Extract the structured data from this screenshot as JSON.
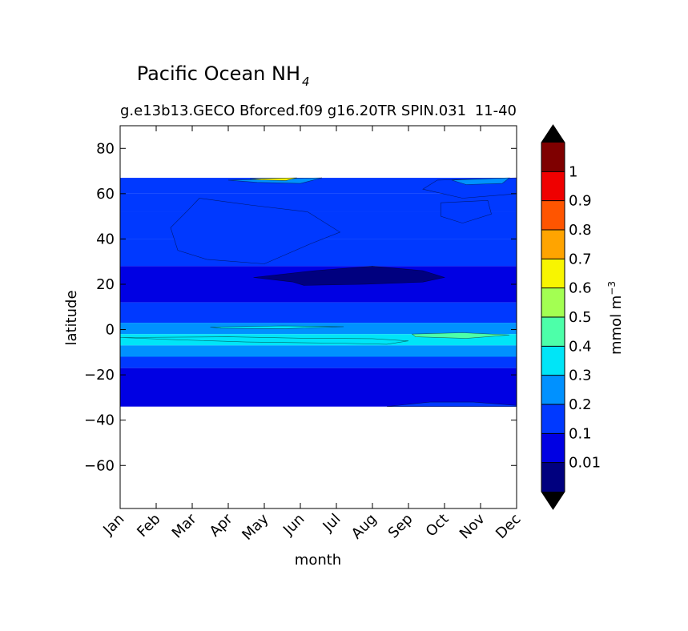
{
  "chart_data": {
    "type": "heatmap",
    "title": "Pacific Ocean NH",
    "title_subscript": "4",
    "subtitle": "g.e13b13.GECO Bforced.f09 g16.20TR SPIN.031",
    "subtitle_right": "11-40",
    "xlabel": "month",
    "ylabel": "latitude",
    "x_categories": [
      "Jan",
      "Feb",
      "Mar",
      "Apr",
      "May",
      "Jun",
      "Jul",
      "Aug",
      "Sep",
      "Oct",
      "Nov",
      "Dec"
    ],
    "y_ticks": [
      80,
      60,
      40,
      20,
      0,
      -20,
      -40,
      -60
    ],
    "y_tick_labels": [
      "80",
      "60",
      "40",
      "20",
      "0",
      "−20",
      "−40",
      "−60"
    ],
    "ylim": [
      -79,
      90
    ],
    "data_lat_range": [
      -34,
      67
    ],
    "colorbar": {
      "label": "mmol m",
      "label_superscript": "−3",
      "levels": [
        0,
        0.01,
        0.1,
        0.2,
        0.3,
        0.4,
        0.5,
        0.6,
        0.7,
        0.8,
        0.9,
        1,
        1.1
      ],
      "tick_labels": [
        "0.01",
        "0.1",
        "0.2",
        "0.3",
        "0.4",
        "0.5",
        "0.6",
        "0.7",
        "0.8",
        "0.9",
        "1"
      ],
      "colors": [
        "#00007f",
        "#0000e3",
        "#0039ff",
        "#0091ff",
        "#00e5f7",
        "#4dffa9",
        "#a3ff52",
        "#f8f500",
        "#ffa400",
        "#ff5500",
        "#ef0000",
        "#7f0000"
      ],
      "extend_min_color": "#000000",
      "extend_max_color": "#000000"
    },
    "bands": [
      {
        "lat": [
          60,
          67
        ],
        "level": 0.15
      },
      {
        "lat": [
          52,
          60
        ],
        "level": 0.1
      },
      {
        "lat": [
          40,
          52
        ],
        "level": 0.15
      },
      {
        "lat": [
          28,
          40
        ],
        "level": 0.1
      },
      {
        "lat": [
          12,
          28
        ],
        "level": 0.05
      },
      {
        "lat": [
          3,
          12
        ],
        "level": 0.15
      },
      {
        "lat": [
          -2,
          3
        ],
        "level": 0.25
      },
      {
        "lat": [
          -7,
          -2
        ],
        "level": 0.35
      },
      {
        "lat": [
          -12,
          -7
        ],
        "level": 0.25
      },
      {
        "lat": [
          -17,
          -12
        ],
        "level": 0.15
      },
      {
        "lat": [
          -34,
          -17
        ],
        "level": 0.05
      }
    ],
    "features": [
      {
        "level": 0.15,
        "points": [
          [
            2.2,
            58
          ],
          [
            3.6,
            55
          ],
          [
            5.2,
            52
          ],
          [
            6.1,
            43
          ],
          [
            5.3,
            38
          ],
          [
            4.0,
            29
          ],
          [
            2.4,
            31
          ],
          [
            1.6,
            35
          ],
          [
            1.4,
            45
          ],
          [
            1.9,
            53
          ]
        ]
      },
      {
        "level": 0.15,
        "points": [
          [
            8.8,
            66
          ],
          [
            11.0,
            67
          ],
          [
            11.0,
            60
          ],
          [
            9.5,
            58
          ],
          [
            8.4,
            62
          ]
        ]
      },
      {
        "level": 0.15,
        "points": [
          [
            8.9,
            56
          ],
          [
            10.2,
            57
          ],
          [
            10.3,
            51
          ],
          [
            9.5,
            47
          ],
          [
            8.9,
            50
          ]
        ]
      },
      {
        "level": 0.25,
        "points": [
          [
            9.2,
            66
          ],
          [
            10.8,
            67
          ],
          [
            10.6,
            64.5
          ],
          [
            9.6,
            64
          ]
        ]
      },
      {
        "level": 0.25,
        "points": [
          [
            3.0,
            66
          ],
          [
            5.6,
            67
          ],
          [
            5.0,
            64.5
          ],
          [
            3.8,
            65
          ]
        ]
      },
      {
        "level": 0.65,
        "points": [
          [
            3.6,
            66.6
          ],
          [
            4.9,
            67
          ],
          [
            4.6,
            65.8
          ],
          [
            3.9,
            66.1
          ]
        ]
      },
      {
        "level": 0.0,
        "points": [
          [
            3.7,
            23
          ],
          [
            5.4,
            26
          ],
          [
            7.0,
            28
          ],
          [
            8.4,
            26
          ],
          [
            9.0,
            23
          ],
          [
            8.4,
            21
          ],
          [
            6.8,
            20
          ],
          [
            5.1,
            19.5
          ],
          [
            4.8,
            21
          ]
        ]
      },
      {
        "level": 0.35,
        "points": [
          [
            2.5,
            1.1
          ],
          [
            4.5,
            1.6
          ],
          [
            6.2,
            1.3
          ],
          [
            4.6,
            0.4
          ],
          [
            2.8,
            0.6
          ]
        ]
      },
      {
        "level": 0.35,
        "points": [
          [
            0.0,
            -3.5
          ],
          [
            1.6,
            -4.5
          ],
          [
            3.5,
            -5.5
          ],
          [
            6.0,
            -6
          ],
          [
            7.4,
            -6.5
          ],
          [
            8.0,
            -5
          ],
          [
            7.0,
            -4
          ],
          [
            5.0,
            -3.8
          ],
          [
            3.0,
            -3.2
          ]
        ]
      },
      {
        "level": 0.45,
        "points": [
          [
            8.1,
            -2
          ],
          [
            9.5,
            -1.4
          ],
          [
            10.8,
            -2.4
          ],
          [
            9.6,
            -3.9
          ],
          [
            8.2,
            -3.2
          ]
        ]
      },
      {
        "level": 0.15,
        "points": [
          [
            7.4,
            -34
          ],
          [
            8.6,
            -32
          ],
          [
            9.8,
            -32
          ],
          [
            11.0,
            -33.5
          ],
          [
            11.0,
            -34
          ]
        ]
      }
    ]
  }
}
